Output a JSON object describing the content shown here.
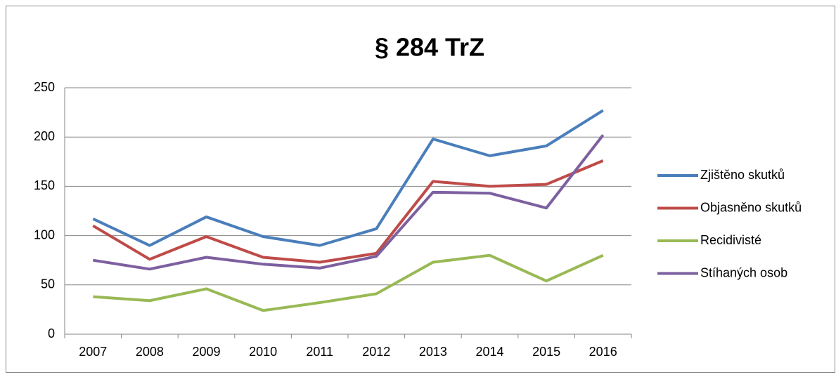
{
  "chart_data": {
    "type": "line",
    "title": "§ 284 TrZ",
    "categories": [
      "2007",
      "2008",
      "2009",
      "2010",
      "2011",
      "2012",
      "2013",
      "2014",
      "2015",
      "2016"
    ],
    "series": [
      {
        "name": "Zjištěno skutků",
        "color": "#4a7ebb",
        "values": [
          117,
          90,
          119,
          99,
          90,
          107,
          198,
          181,
          191,
          227
        ]
      },
      {
        "name": "Objasněno skutků",
        "color": "#be4b48",
        "values": [
          110,
          76,
          99,
          78,
          73,
          82,
          155,
          150,
          152,
          176
        ]
      },
      {
        "name": "Recidivisté",
        "color": "#98b954",
        "values": [
          38,
          34,
          46,
          24,
          32,
          41,
          73,
          80,
          54,
          80
        ]
      },
      {
        "name": "Stíhaných osob",
        "color": "#7d60a0",
        "values": [
          75,
          66,
          78,
          71,
          67,
          79,
          144,
          143,
          128,
          202
        ]
      }
    ],
    "ylim": [
      0,
      250
    ],
    "yticks": [
      0,
      50,
      100,
      150,
      200,
      250
    ],
    "grid": true,
    "legend": "right"
  }
}
